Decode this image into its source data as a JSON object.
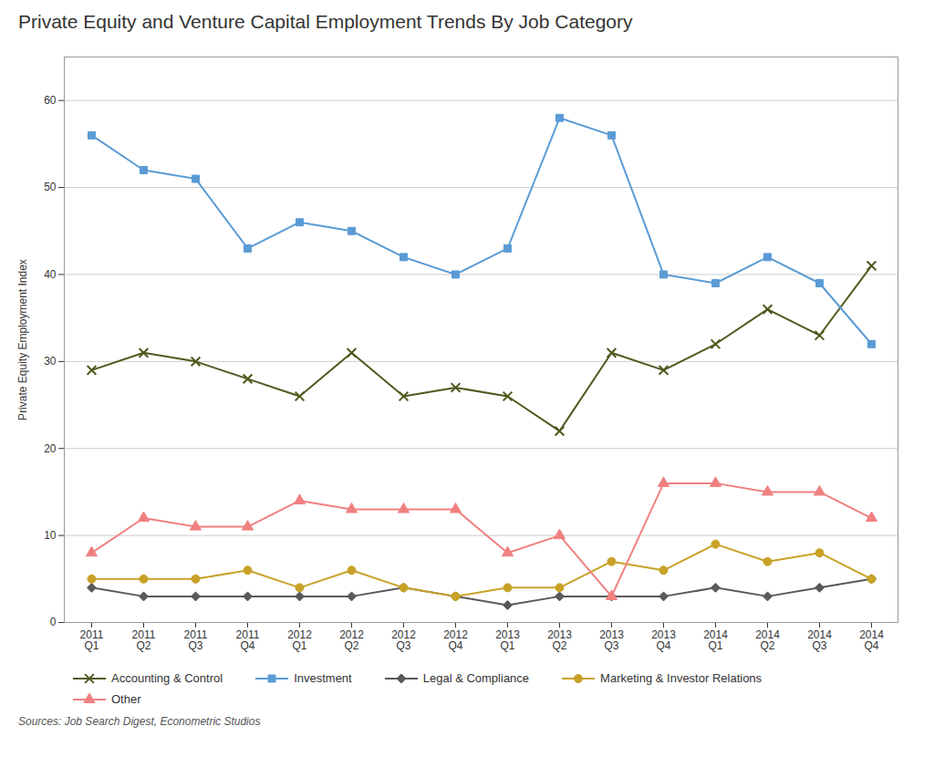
{
  "chart_data": {
    "type": "line",
    "title": "Private Equity and Venture Capital Employment Trends By Job Category",
    "y_label": "Private Equity Employment Index",
    "source": "Sources: Job Search Digest, Econometric Studios",
    "categories": [
      "2011\nQ1",
      "2011\nQ2",
      "2011\nQ3",
      "2011\nQ4",
      "2012\nQ1",
      "2012\nQ2",
      "2012\nQ3",
      "2012\nQ4",
      "2013\nQ1",
      "2013\nQ2",
      "2013\nQ3",
      "2013\nQ4",
      "2014\nQ1",
      "2014\nQ2",
      "2014\nQ3",
      "2014\nQ4"
    ],
    "series": [
      {
        "name": "Accounting & Control",
        "color": "#4d5a1e",
        "marker": "x",
        "values": [
          29,
          31,
          30,
          28,
          26,
          31,
          26,
          27,
          26,
          22,
          31,
          29,
          32,
          36,
          33,
          41
        ]
      },
      {
        "name": "Investment",
        "color": "#5b9bd5",
        "marker": "square",
        "values": [
          56,
          52,
          51,
          43,
          46,
          45,
          42,
          40,
          43,
          58,
          56,
          40,
          39,
          42,
          39,
          32
        ]
      },
      {
        "name": "Legal & Compliance",
        "color": "#595959",
        "marker": "diamond",
        "values": [
          4,
          3,
          3,
          3,
          3,
          3,
          4,
          3,
          2,
          3,
          3,
          3,
          4,
          3,
          4,
          5
        ]
      },
      {
        "name": "Marketing & Investor Relations",
        "color": "#c8a227",
        "marker": "circle",
        "values": [
          5,
          5,
          5,
          6,
          4,
          6,
          4,
          3,
          4,
          4,
          7,
          6,
          9,
          7,
          8,
          5
        ]
      },
      {
        "name": "Other",
        "color": "#f08080",
        "marker": "triangle",
        "values": [
          8,
          12,
          11,
          11,
          14,
          13,
          13,
          13,
          8,
          10,
          3,
          16,
          16,
          15,
          15,
          12
        ]
      }
    ],
    "ylim": [
      0,
      65
    ],
    "yticks": [
      0,
      10,
      20,
      30,
      40,
      50,
      60
    ],
    "grid": true,
    "legend": "bottom"
  }
}
